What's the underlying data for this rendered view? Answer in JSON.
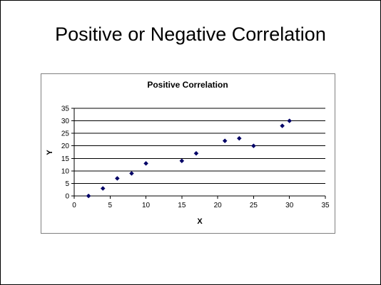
{
  "slide": {
    "title": "Positive or Negative Correlation"
  },
  "colors": {
    "marker": "#000066",
    "gridline": "#000000",
    "axis": "#000000",
    "frame_border": "#808080"
  },
  "chart_data": {
    "type": "scatter",
    "title": "Positive Correlation",
    "xlabel": "X",
    "ylabel": "Y",
    "xlim": [
      0,
      35
    ],
    "ylim": [
      0,
      35
    ],
    "xticks": [
      0,
      5,
      10,
      15,
      20,
      25,
      30,
      35
    ],
    "yticks": [
      0,
      5,
      10,
      15,
      20,
      25,
      30,
      35
    ],
    "grid": "horizontal",
    "legend": "none",
    "marker": "diamond",
    "points": [
      {
        "x": 2,
        "y": 0
      },
      {
        "x": 4,
        "y": 3
      },
      {
        "x": 6,
        "y": 7
      },
      {
        "x": 8,
        "y": 9
      },
      {
        "x": 10,
        "y": 13
      },
      {
        "x": 15,
        "y": 14
      },
      {
        "x": 17,
        "y": 17
      },
      {
        "x": 21,
        "y": 22
      },
      {
        "x": 23,
        "y": 23
      },
      {
        "x": 25,
        "y": 20
      },
      {
        "x": 29,
        "y": 28
      },
      {
        "x": 30,
        "y": 30
      }
    ]
  }
}
